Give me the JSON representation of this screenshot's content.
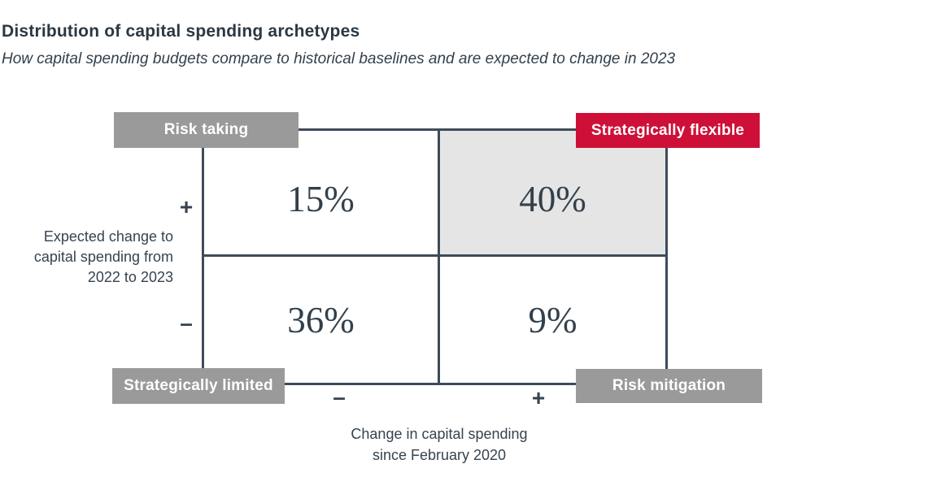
{
  "header": {
    "title": "Distribution of capital spending archetypes",
    "subtitle": "How capital spending budgets compare to historical baselines and are expected to change in 2023"
  },
  "matrix": {
    "quadrants": {
      "top_left": {
        "label": "Risk taking",
        "value": "15%"
      },
      "top_right": {
        "label": "Strategically flexible",
        "value": "40%",
        "highlighted": true
      },
      "bottom_left": {
        "label": "Strategically limited",
        "value": "36%"
      },
      "bottom_right": {
        "label": "Risk mitigation",
        "value": "9%"
      }
    },
    "y_axis": {
      "plus": "+",
      "minus": "–",
      "lines": [
        "Expected change to",
        "capital spending from",
        "2022 to 2023"
      ]
    },
    "x_axis": {
      "minus": "–",
      "plus": "+",
      "lines": [
        "Change in capital spending",
        "since February 2020"
      ]
    }
  },
  "colors": {
    "text_navy": "#2F3D49",
    "line_navy": "#3E4B59",
    "label_gray": "#9A9A9A",
    "accent_red": "#CE1038",
    "highlight_gray": "#E5E5E5",
    "label_text": "#FFFFFF"
  },
  "chart_data": {
    "type": "heatmap",
    "subtype": "2x2-quadrant-matrix",
    "title": "Distribution of capital spending archetypes",
    "subtitle": "How capital spending budgets compare to historical baselines and are expected to change in 2023",
    "xlabel": "Change in capital spending since February 2020",
    "ylabel": "Expected change to capital spending from 2022 to 2023",
    "x_categories": [
      "decrease (–)",
      "increase (+)"
    ],
    "y_categories": [
      "increase (+)",
      "decrease (–)"
    ],
    "quadrants": [
      {
        "name": "Risk taking",
        "x": "–",
        "y": "+",
        "value_pct": 15,
        "highlighted": false
      },
      {
        "name": "Strategically flexible",
        "x": "+",
        "y": "+",
        "value_pct": 40,
        "highlighted": true
      },
      {
        "name": "Strategically limited",
        "x": "–",
        "y": "–",
        "value_pct": 36,
        "highlighted": false
      },
      {
        "name": "Risk mitigation",
        "x": "+",
        "y": "–",
        "value_pct": 9,
        "highlighted": false
      }
    ],
    "legend": "none",
    "grid": "quadrant borders only"
  }
}
